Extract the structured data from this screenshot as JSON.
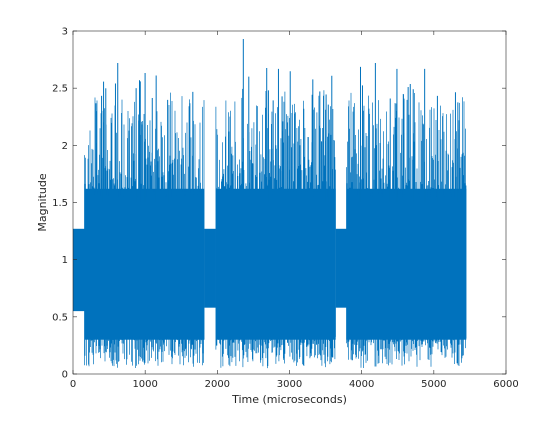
{
  "chart_data": {
    "type": "line",
    "title": "",
    "xlabel": "Time (microseconds)",
    "ylabel": "Magnitude",
    "xlim": [
      0,
      6000
    ],
    "ylim": [
      0,
      3
    ],
    "xticks": [
      0,
      1000,
      2000,
      3000,
      4000,
      5000,
      6000
    ],
    "yticks": [
      0,
      0.5,
      1,
      1.5,
      2,
      2.5,
      3
    ],
    "xtick_labels": [
      "0",
      "1000",
      "2000",
      "3000",
      "4000",
      "5000",
      "6000"
    ],
    "ytick_labels": [
      "0",
      "0.5",
      "1",
      "1.5",
      "2",
      "2.5",
      "3"
    ],
    "grid": false,
    "box": true,
    "series": [
      {
        "color": "#0072BD",
        "segments": [
          {
            "x_start": 0,
            "x_end": 160,
            "min": 0.55,
            "max": 1.27,
            "kind": "preamble"
          },
          {
            "x_start": 160,
            "x_end": 1820,
            "min": 0.0,
            "max": 2.72,
            "kind": "burst",
            "peak_x": 620,
            "peak_y": 2.72
          },
          {
            "x_start": 1820,
            "x_end": 1890,
            "min": 0.0,
            "max": 0.0,
            "kind": "gap"
          },
          {
            "x_start": 1820,
            "x_end": 1980,
            "min": 0.58,
            "max": 1.27,
            "kind": "preamble"
          },
          {
            "x_start": 1980,
            "x_end": 3640,
            "min": 0.0,
            "max": 2.93,
            "kind": "burst",
            "peak_x": 2360,
            "peak_y": 2.93
          },
          {
            "x_start": 3640,
            "x_end": 3790,
            "min": 0.58,
            "max": 1.27,
            "kind": "preamble"
          },
          {
            "x_start": 3790,
            "x_end": 5450,
            "min": 0.0,
            "max": 2.72,
            "kind": "burst",
            "peak_x": 4190,
            "peak_y": 2.72
          }
        ]
      }
    ]
  }
}
